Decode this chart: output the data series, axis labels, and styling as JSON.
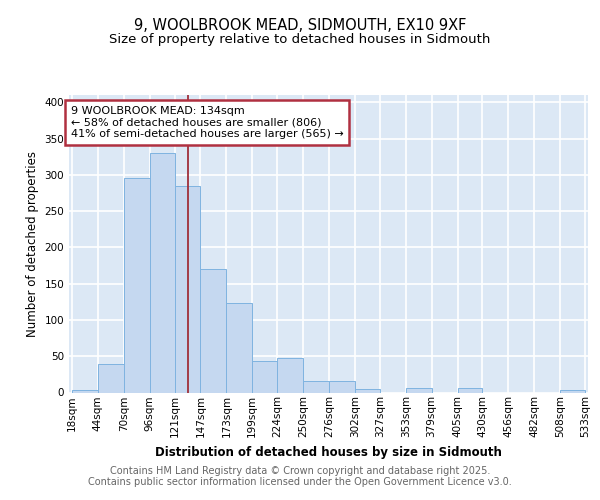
{
  "title1": "9, WOOLBROOK MEAD, SIDMOUTH, EX10 9XF",
  "title2": "Size of property relative to detached houses in Sidmouth",
  "xlabel": "Distribution of detached houses by size in Sidmouth",
  "ylabel": "Number of detached properties",
  "bin_labels": [
    "18sqm",
    "44sqm",
    "70sqm",
    "96sqm",
    "121sqm",
    "147sqm",
    "173sqm",
    "199sqm",
    "224sqm",
    "250sqm",
    "276sqm",
    "302sqm",
    "327sqm",
    "353sqm",
    "379sqm",
    "405sqm",
    "430sqm",
    "456sqm",
    "482sqm",
    "508sqm",
    "533sqm"
  ],
  "bin_edges": [
    18,
    44,
    70,
    96,
    121,
    147,
    173,
    199,
    224,
    250,
    276,
    302,
    327,
    353,
    379,
    405,
    430,
    456,
    482,
    508,
    533
  ],
  "values": [
    4,
    39,
    296,
    330,
    284,
    170,
    124,
    43,
    47,
    16,
    16,
    5,
    0,
    6,
    0,
    6,
    0,
    0,
    0,
    3
  ],
  "bar_color": "#c5d8f0",
  "bar_edge_color": "#7fb3e0",
  "property_size": 134,
  "property_line_color": "#a0303a",
  "annotation_text": "9 WOOLBROOK MEAD: 134sqm\n← 58% of detached houses are smaller (806)\n41% of semi-detached houses are larger (565) →",
  "annotation_box_color": "#b03040",
  "ylim": [
    0,
    410
  ],
  "yticks": [
    0,
    50,
    100,
    150,
    200,
    250,
    300,
    350,
    400
  ],
  "background_color": "#dce8f5",
  "grid_color": "#ffffff",
  "footer_line1": "Contains HM Land Registry data © Crown copyright and database right 2025.",
  "footer_line2": "Contains public sector information licensed under the Open Government Licence v3.0.",
  "title_fontsize": 10.5,
  "subtitle_fontsize": 9.5,
  "axis_label_fontsize": 8.5,
  "tick_fontsize": 7.5,
  "annotation_fontsize": 8,
  "footer_fontsize": 7
}
